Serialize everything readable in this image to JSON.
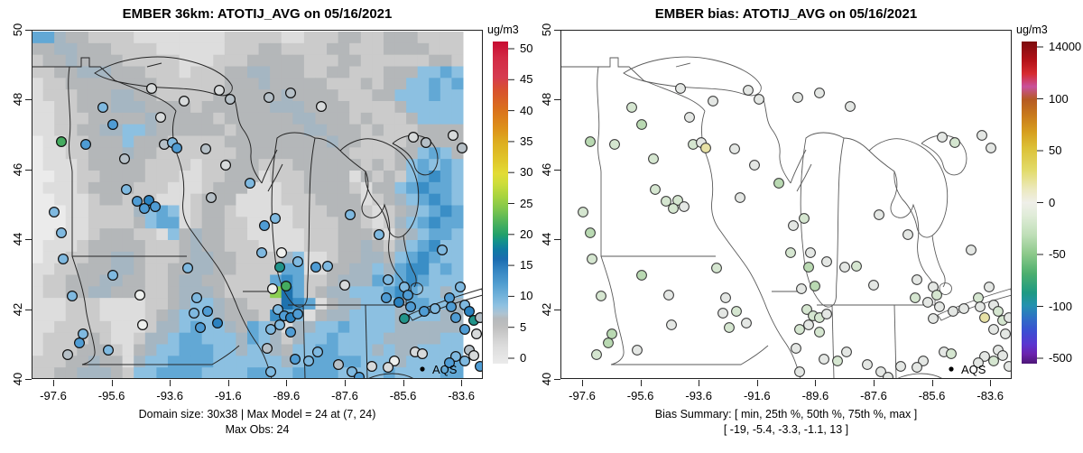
{
  "panels": [
    {
      "id": "model",
      "title": "EMBER 36km: ATOTIJ_AVG on 05/16/2021",
      "caption_line1": "Domain size: 30x38 | Max Model = 24 at (7, 24)",
      "caption_line2": "Max Obs: 24",
      "legend_label": "AQS",
      "colorbar": {
        "unit_label": "ug/m3",
        "ticks": [
          "50",
          "45",
          "40",
          "35",
          "30",
          "25",
          "20",
          "15",
          "10",
          "5",
          "0"
        ],
        "gradient": [
          [
            0,
            "#c70b31"
          ],
          [
            0.05,
            "#d22a45"
          ],
          [
            0.11,
            "#d63b50"
          ],
          [
            0.15,
            "#d8512f"
          ],
          [
            0.21,
            "#da701c"
          ],
          [
            0.27,
            "#dd9119"
          ],
          [
            0.31,
            "#ddac1f"
          ],
          [
            0.37,
            "#e0c72a"
          ],
          [
            0.41,
            "#e2dc35"
          ],
          [
            0.44,
            "#cedd3a"
          ],
          [
            0.48,
            "#a8d43f"
          ],
          [
            0.52,
            "#7fc64c"
          ],
          [
            0.56,
            "#4fb35a"
          ],
          [
            0.6,
            "#21a06b"
          ],
          [
            0.62,
            "#13918b"
          ],
          [
            0.645,
            "#0f7ba2"
          ],
          [
            0.675,
            "#1a6cb0"
          ],
          [
            0.71,
            "#3485c2"
          ],
          [
            0.75,
            "#4f9ccf"
          ],
          [
            0.79,
            "#72b2da"
          ],
          [
            0.82,
            "#8fc1e1"
          ],
          [
            0.845,
            "#aec3d2"
          ],
          [
            0.86,
            "#b5b9bc"
          ],
          [
            0.886,
            "#bfbfbf"
          ],
          [
            0.915,
            "#cecece"
          ],
          [
            0.945,
            "#dcdcdc"
          ],
          [
            1,
            "#ebebeb"
          ]
        ]
      }
    },
    {
      "id": "bias",
      "title": "EMBER bias: ATOTIJ_AVG on 05/16/2021",
      "caption_line1": "Bias Summary: [ min, 25th %, 50th %, 75th %, max ]",
      "caption_line2": "[ -19,  -5.4,  -3.3,  -1.1,  13 ]",
      "legend_label": "AQS",
      "colorbar": {
        "unit_label": "ug/m3",
        "ticks": [
          "14000",
          "100",
          "50",
          "0",
          "-50",
          "-100",
          "-500"
        ],
        "gradient": [
          [
            0,
            "#7c0b0e"
          ],
          [
            0.06,
            "#b51218"
          ],
          [
            0.1,
            "#d62b30"
          ],
          [
            0.14,
            "#c9519c"
          ],
          [
            0.18,
            "#b55a23"
          ],
          [
            0.23,
            "#c97a1b"
          ],
          [
            0.28,
            "#d69e1e"
          ],
          [
            0.33,
            "#dcc137"
          ],
          [
            0.4,
            "#e2db6a"
          ],
          [
            0.46,
            "#ece9c0"
          ],
          [
            0.5,
            "#efefe9"
          ],
          [
            0.54,
            "#e0ecd8"
          ],
          [
            0.6,
            "#bfdfb8"
          ],
          [
            0.66,
            "#8cc98a"
          ],
          [
            0.72,
            "#4caf6e"
          ],
          [
            0.78,
            "#1d9a83"
          ],
          [
            0.82,
            "#2391b0"
          ],
          [
            0.86,
            "#2f6ec6"
          ],
          [
            0.9,
            "#3b4ed2"
          ],
          [
            0.94,
            "#5a35d0"
          ],
          [
            0.97,
            "#6b22ae"
          ],
          [
            1,
            "#4d1777"
          ]
        ]
      }
    }
  ],
  "axes": {
    "x_tick_labels": [
      "-97.6",
      "-95.6",
      "-93.6",
      "-91.6",
      "-89.6",
      "-87.6",
      "-85.6",
      "-83.6"
    ],
    "y_tick_labels": [
      "50",
      "48",
      "46",
      "44",
      "42",
      "40"
    ]
  },
  "chart_data": {
    "type": "heatmap",
    "description": "Left: EMBER 36km model PM field (30x38 raster, ug/m3) with AQS site observations as filled circles. Right: model bias at the same AQS sites. Map area: Upper Midwest / Great Lakes, lon -97.6..-83.6, lat 40..50.",
    "value_max_model": 24,
    "value_max_obs": 24,
    "bias_summary": [
      -19,
      -5.4,
      -3.3,
      -1.1,
      13
    ],
    "raster": {
      "cols": 38,
      "rows_count": 30,
      "palette": {
        "0": "#ebebeb",
        "1": "#dddddd",
        "2": "#cbcbcb",
        "3": "#b4b7b9",
        "4": "#a5b6c2",
        "5": "#8cc0e1",
        "6": "#62a8d5",
        "7": "#3a8ec6",
        "8": "#1e72ae",
        "9": "#8ccf52"
      },
      "palette_values": {
        "0": 1,
        "1": 2,
        "2": 4,
        "3": 6,
        "4": 7,
        "5": 9,
        "6": 12,
        "7": 14,
        "8": 16,
        "9": 24
      },
      "rows": [
        "66433222211111111222221122233223332222",
        "33443332222111111222332222332223333222",
        "23343333222221112223333322233222222332",
        "22334443332221222334433322332223335565",
        "12233333333222222333433333222323355656",
        "12223334433222223333334333322233555655",
        "11223334443333233333344433332222355555",
        "11222333334333332333333443332322235555",
        "11223344554333333233333344333232223333",
        "01122333533322222333333333433222233333",
        "01122333433222222233333333332222335653",
        "01112333332222122333222333333232356565",
        "00112233332221122333122233331323256765",
        "01112333322211123331112233332133567665",
        "00111233222111233311112223333123456765",
        "00011222245651233211111222333212345676",
        "00011222235661233221111222233212456766",
        "00111233322153433221111122233321345665",
        "01112333332223433222111122233432456755",
        "01122334432223443322224511233443567655",
        "11223334432233443322226611334454677565",
        "12233344332234433222267622344465676555",
        "12233443332234443222298623445556765545",
        "11122211112234554332228761344555466554",
        "11122211112345554333276513445555455544",
        "11222221112445655436541445565555444444",
        "12222321124456655546542455655554444455",
        "12223332134556665545543556655545445555",
        "22233433145566665555554566666555455556",
        "22334443255666655556655666655556555566"
      ]
    },
    "dot_palettes": {
      "model": {
        "lg": "#d7dadb",
        "g": "#b6c0c7",
        "w": "#eef0ee",
        "lb": "#7fb9e0",
        "b": "#4f9cd4",
        "db": "#2b82c0",
        "te": "#21948a",
        "gr": "#44ab5f"
      },
      "bias": {
        "n": "#e4e7e4",
        "g1": "#d5e6d0",
        "g2": "#b9d9b2",
        "y": "#e7e1a5"
      }
    },
    "sites": [
      [
        33,
        124,
        "gr",
        "g2"
      ],
      [
        60,
        127,
        "b",
        "g1"
      ],
      [
        79,
        86,
        "lb",
        "g1"
      ],
      [
        90,
        105,
        "b",
        "g2"
      ],
      [
        103,
        143,
        "g",
        "g1"
      ],
      [
        133,
        65,
        "lg",
        "n"
      ],
      [
        143,
        97,
        "lg",
        "n"
      ],
      [
        147,
        127,
        "g",
        "g1"
      ],
      [
        156,
        125,
        "lb",
        "n"
      ],
      [
        161,
        131,
        "b",
        "y"
      ],
      [
        169,
        79,
        "lg",
        "n"
      ],
      [
        193,
        132,
        "g",
        "n"
      ],
      [
        105,
        177,
        "lb",
        "g1"
      ],
      [
        117,
        190,
        "b",
        "g1"
      ],
      [
        130,
        189,
        "db",
        "g1"
      ],
      [
        137,
        196,
        "b",
        "n"
      ],
      [
        125,
        198,
        "b",
        "g1"
      ],
      [
        220,
        77,
        "g",
        "n"
      ],
      [
        215,
        150,
        "lg",
        "n"
      ],
      [
        242,
        170,
        "lb",
        "g2"
      ],
      [
        199,
        186,
        "g",
        "n"
      ],
      [
        208,
        67,
        "lg",
        "n"
      ],
      [
        263,
        75,
        "g",
        "n"
      ],
      [
        287,
        70,
        "g",
        "n"
      ],
      [
        321,
        85,
        "lg",
        "n"
      ],
      [
        270,
        209,
        "lb",
        "g1"
      ],
      [
        258,
        217,
        "b",
        "n"
      ],
      [
        255,
        247,
        "lb",
        "g1"
      ],
      [
        277,
        247,
        "w",
        "n"
      ],
      [
        275,
        263,
        "te",
        "g2"
      ],
      [
        282,
        284,
        "gr",
        "g2"
      ],
      [
        267,
        287,
        "w",
        "n"
      ],
      [
        273,
        310,
        "lb",
        "g1"
      ],
      [
        280,
        317,
        "b",
        "g1"
      ],
      [
        287,
        319,
        "db",
        "g1"
      ],
      [
        295,
        315,
        "b",
        "n"
      ],
      [
        275,
        327,
        "lb",
        "n"
      ],
      [
        265,
        332,
        "lb",
        "g1"
      ],
      [
        287,
        335,
        "b",
        "g1"
      ],
      [
        261,
        353,
        "g",
        "n"
      ],
      [
        353,
        205,
        "lb",
        "n"
      ],
      [
        385,
        227,
        "lb",
        "n"
      ],
      [
        328,
        262,
        "lb",
        "g1"
      ],
      [
        315,
        263,
        "b",
        "n"
      ],
      [
        295,
        257,
        "lb",
        "n"
      ],
      [
        347,
        283,
        "lg",
        "n"
      ],
      [
        395,
        277,
        "lb",
        "n"
      ],
      [
        393,
        297,
        "b",
        "g1"
      ],
      [
        413,
        285,
        "lb",
        "n"
      ],
      [
        417,
        294,
        "b",
        "g1"
      ],
      [
        407,
        302,
        "db",
        "n"
      ],
      [
        420,
        307,
        "b",
        "n"
      ],
      [
        455,
        244,
        "lb",
        "n"
      ],
      [
        463,
        297,
        "b",
        "g1"
      ],
      [
        475,
        285,
        "lb",
        "n"
      ],
      [
        435,
        312,
        "b",
        "n"
      ],
      [
        447,
        309,
        "lb",
        "n"
      ],
      [
        465,
        307,
        "b",
        "n"
      ],
      [
        480,
        305,
        "lb",
        "n"
      ],
      [
        485,
        312,
        "db",
        "g1"
      ],
      [
        470,
        319,
        "b",
        "y"
      ],
      [
        490,
        322,
        "te",
        "g1"
      ],
      [
        480,
        332,
        "b",
        "n"
      ],
      [
        497,
        319,
        "g",
        "n"
      ],
      [
        493,
        337,
        "lg",
        "n"
      ],
      [
        317,
        357,
        "lb",
        "n"
      ],
      [
        292,
        365,
        "b",
        "n"
      ],
      [
        307,
        367,
        "lb",
        "g1"
      ],
      [
        265,
        379,
        "lb",
        "n"
      ],
      [
        340,
        371,
        "g",
        "n"
      ],
      [
        355,
        379,
        "lb",
        "n"
      ],
      [
        363,
        385,
        "b",
        "n"
      ],
      [
        377,
        373,
        "lg",
        "n"
      ],
      [
        425,
        357,
        "lg",
        "n"
      ],
      [
        433,
        359,
        "lg",
        "g1"
      ],
      [
        402,
        367,
        "w",
        "n"
      ],
      [
        395,
        374,
        "lg",
        "n"
      ],
      [
        413,
        320,
        "te",
        "n"
      ],
      [
        485,
        355,
        "g",
        "n"
      ],
      [
        470,
        362,
        "lb",
        "n"
      ],
      [
        463,
        369,
        "b",
        "n"
      ],
      [
        480,
        367,
        "lb",
        "g1"
      ],
      [
        490,
        361,
        "lg",
        "n"
      ],
      [
        497,
        373,
        "b",
        "n"
      ],
      [
        25,
        202,
        "lb",
        "g1"
      ],
      [
        33,
        225,
        "lb",
        "g2"
      ],
      [
        35,
        254,
        "lb",
        "g1"
      ],
      [
        90,
        272,
        "lb",
        "g2"
      ],
      [
        45,
        295,
        "lb",
        "g1"
      ],
      [
        57,
        337,
        "lb",
        "g2"
      ],
      [
        53,
        347,
        "b",
        "g2"
      ],
      [
        40,
        360,
        "g",
        "g1"
      ],
      [
        85,
        355,
        "lb",
        "n"
      ],
      [
        120,
        294,
        "w",
        "n"
      ],
      [
        123,
        327,
        "w",
        "n"
      ],
      [
        173,
        264,
        "lb",
        "g1"
      ],
      [
        180,
        314,
        "lb",
        "n"
      ],
      [
        195,
        312,
        "b",
        "g1"
      ],
      [
        187,
        330,
        "b",
        "g1"
      ],
      [
        206,
        325,
        "db",
        "n"
      ],
      [
        183,
        297,
        "lb",
        "n"
      ],
      [
        423,
        119,
        "lg",
        "n"
      ],
      [
        437,
        125,
        "g",
        "g1"
      ],
      [
        467,
        117,
        "lg",
        "n"
      ],
      [
        477,
        131,
        "g",
        "n"
      ]
    ]
  }
}
